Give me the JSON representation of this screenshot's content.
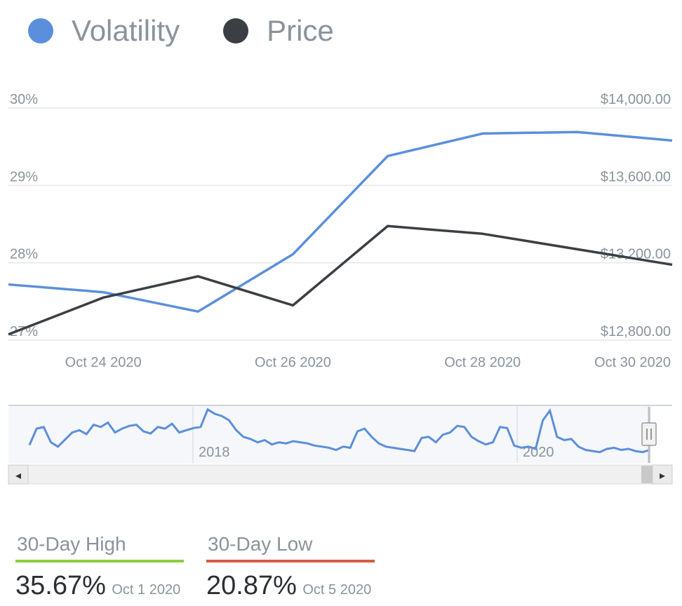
{
  "legend": [
    {
      "name": "Volatility",
      "color": "#5b8fdc"
    },
    {
      "name": "Price",
      "color": "#3b3f44"
    }
  ],
  "chart_data": {
    "type": "line",
    "x": [
      "2020-10-23",
      "2020-10-24",
      "2020-10-25",
      "2020-10-26",
      "2020-10-27",
      "2020-10-28",
      "2020-10-29",
      "2020-10-30"
    ],
    "x_tick_labels": [
      "Oct 24 2020",
      "Oct 26 2020",
      "Oct 28 2020",
      "Oct 30 2020"
    ],
    "x_tick_values": [
      "2020-10-24",
      "2020-10-26",
      "2020-10-28",
      "2020-10-30"
    ],
    "series": [
      {
        "name": "Volatility",
        "axis": "left",
        "color": "#5b8fdc",
        "values": [
          27.72,
          27.62,
          27.37,
          28.11,
          29.38,
          29.67,
          29.69,
          29.58
        ]
      },
      {
        "name": "Price",
        "axis": "right",
        "color": "#3b3f44",
        "values": [
          12830,
          13020,
          13130,
          12980,
          13390,
          13350,
          13270,
          13190
        ]
      }
    ],
    "y_left": {
      "ylim": [
        27,
        30
      ],
      "ticks": [
        27,
        28,
        29,
        30
      ],
      "tick_labels": [
        "27%",
        "28%",
        "29%",
        "30%"
      ]
    },
    "y_right": {
      "ylim": [
        12800,
        14000
      ],
      "ticks": [
        12800,
        13200,
        13600,
        14000
      ],
      "tick_labels": [
        "$12,800.00",
        "$13,200.00",
        "$13,600.00",
        "$14,000.00"
      ]
    },
    "grid": true,
    "legend_position": "top-left",
    "navigator": {
      "labels": [
        "2018",
        "2020"
      ],
      "values": [
        0.25,
        0.55,
        0.58,
        0.3,
        0.22,
        0.35,
        0.48,
        0.52,
        0.45,
        0.62,
        0.58,
        0.66,
        0.48,
        0.55,
        0.6,
        0.62,
        0.5,
        0.46,
        0.58,
        0.55,
        0.64,
        0.48,
        0.52,
        0.56,
        0.58,
        0.9,
        0.82,
        0.78,
        0.7,
        0.52,
        0.4,
        0.36,
        0.3,
        0.34,
        0.26,
        0.3,
        0.28,
        0.32,
        0.3,
        0.28,
        0.24,
        0.22,
        0.2,
        0.16,
        0.22,
        0.2,
        0.5,
        0.55,
        0.4,
        0.28,
        0.22,
        0.2,
        0.18,
        0.16,
        0.14,
        0.38,
        0.4,
        0.3,
        0.44,
        0.48,
        0.6,
        0.58,
        0.4,
        0.32,
        0.26,
        0.3,
        0.58,
        0.56,
        0.24,
        0.2,
        0.22,
        0.18,
        0.7,
        0.88,
        0.4,
        0.34,
        0.36,
        0.22,
        0.16,
        0.14,
        0.12,
        0.18,
        0.2,
        0.16,
        0.18,
        0.14,
        0.12,
        0.16
      ]
    }
  },
  "stats": [
    {
      "label": "30-Day High",
      "value": "35.67%",
      "date": "Oct 1 2020",
      "color": "#8ccf3f"
    },
    {
      "label": "30-Day Low",
      "value": "20.87%",
      "date": "Oct 5 2020",
      "color": "#d75a43"
    }
  ],
  "scroll": {
    "left_arrow": "◂",
    "right_arrow": "▸"
  }
}
